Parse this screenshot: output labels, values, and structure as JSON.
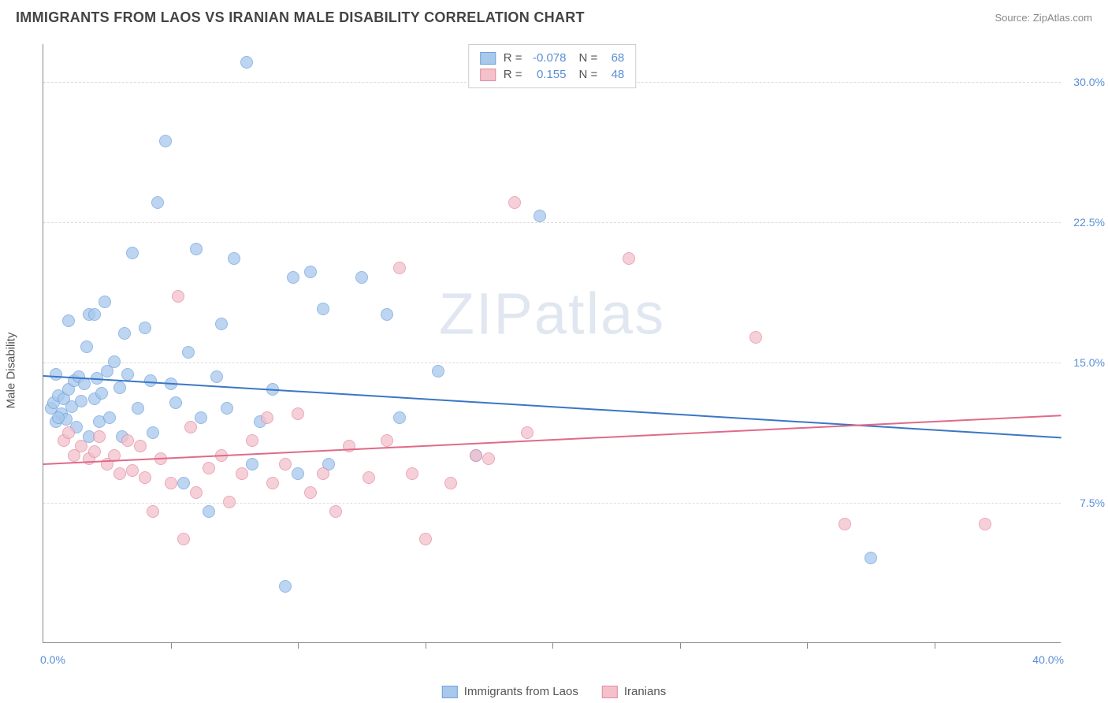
{
  "title": "IMMIGRANTS FROM LAOS VS IRANIAN MALE DISABILITY CORRELATION CHART",
  "source_label": "Source: ",
  "source_value": "ZipAtlas.com",
  "y_axis_label": "Male Disability",
  "watermark_a": "ZIP",
  "watermark_b": "atlas",
  "chart": {
    "type": "scatter",
    "xlim": [
      0,
      40
    ],
    "ylim": [
      0,
      32
    ],
    "y_ticks": [
      7.5,
      15.0,
      22.5,
      30.0
    ],
    "y_tick_labels": [
      "7.5%",
      "15.0%",
      "22.5%",
      "30.0%"
    ],
    "x_minor_ticks": [
      5,
      10,
      15,
      20,
      25,
      30,
      35
    ],
    "x_tick_labels": [
      {
        "pos": 0,
        "label": "0.0%"
      },
      {
        "pos": 40,
        "label": "40.0%"
      }
    ],
    "background_color": "#ffffff",
    "grid_color": "#dddddd",
    "axis_color": "#888888",
    "tick_label_color": "#5a8fd6",
    "series": [
      {
        "name": "Immigrants from Laos",
        "fill": "#a8c8ec",
        "stroke": "#6fa3dd",
        "line_color": "#3a76c6",
        "R": "-0.078",
        "N": "68",
        "regression": {
          "x1": 0,
          "y1": 14.3,
          "x2": 40,
          "y2": 11.0
        },
        "points": [
          [
            0.3,
            12.5
          ],
          [
            0.4,
            12.8
          ],
          [
            0.5,
            11.8
          ],
          [
            0.6,
            13.2
          ],
          [
            0.7,
            12.2
          ],
          [
            0.8,
            13.0
          ],
          [
            0.9,
            11.9
          ],
          [
            1.0,
            13.5
          ],
          [
            0.6,
            12.0
          ],
          [
            1.1,
            12.6
          ],
          [
            1.2,
            14.0
          ],
          [
            1.3,
            11.5
          ],
          [
            1.4,
            14.2
          ],
          [
            1.5,
            12.9
          ],
          [
            1.6,
            13.8
          ],
          [
            1.8,
            17.5
          ],
          [
            2.0,
            13.0
          ],
          [
            2.1,
            14.1
          ],
          [
            2.2,
            11.8
          ],
          [
            2.3,
            13.3
          ],
          [
            2.5,
            14.5
          ],
          [
            2.6,
            12.0
          ],
          [
            2.8,
            15.0
          ],
          [
            3.0,
            13.6
          ],
          [
            3.1,
            11.0
          ],
          [
            3.3,
            14.3
          ],
          [
            3.5,
            20.8
          ],
          [
            3.7,
            12.5
          ],
          [
            4.0,
            16.8
          ],
          [
            4.2,
            14.0
          ],
          [
            4.5,
            23.5
          ],
          [
            4.8,
            26.8
          ],
          [
            5.0,
            13.8
          ],
          [
            5.2,
            12.8
          ],
          [
            5.5,
            8.5
          ],
          [
            5.7,
            15.5
          ],
          [
            6.0,
            21.0
          ],
          [
            6.2,
            12.0
          ],
          [
            6.5,
            7.0
          ],
          [
            6.8,
            14.2
          ],
          [
            7.0,
            17.0
          ],
          [
            7.2,
            12.5
          ],
          [
            7.5,
            20.5
          ],
          [
            8.0,
            31.0
          ],
          [
            8.2,
            9.5
          ],
          [
            8.5,
            11.8
          ],
          [
            9.0,
            13.5
          ],
          [
            9.5,
            3.0
          ],
          [
            9.8,
            19.5
          ],
          [
            10.0,
            9.0
          ],
          [
            10.5,
            19.8
          ],
          [
            11.0,
            17.8
          ],
          [
            11.2,
            9.5
          ],
          [
            12.5,
            19.5
          ],
          [
            13.5,
            17.5
          ],
          [
            14.0,
            12.0
          ],
          [
            15.5,
            14.5
          ],
          [
            17.0,
            10.0
          ],
          [
            19.5,
            22.8
          ],
          [
            32.5,
            4.5
          ],
          [
            2.0,
            17.5
          ],
          [
            1.0,
            17.2
          ],
          [
            0.5,
            14.3
          ],
          [
            1.8,
            11.0
          ],
          [
            3.2,
            16.5
          ],
          [
            4.3,
            11.2
          ],
          [
            2.4,
            18.2
          ],
          [
            1.7,
            15.8
          ]
        ]
      },
      {
        "name": "Iranians",
        "fill": "#f4c1cb",
        "stroke": "#e38ba0",
        "line_color": "#e06a88",
        "R": "0.155",
        "N": "48",
        "regression": {
          "x1": 0,
          "y1": 9.6,
          "x2": 40,
          "y2": 12.2
        },
        "points": [
          [
            0.8,
            10.8
          ],
          [
            1.0,
            11.2
          ],
          [
            1.2,
            10.0
          ],
          [
            1.5,
            10.5
          ],
          [
            1.8,
            9.8
          ],
          [
            2.0,
            10.2
          ],
          [
            2.2,
            11.0
          ],
          [
            2.5,
            9.5
          ],
          [
            2.8,
            10.0
          ],
          [
            3.0,
            9.0
          ],
          [
            3.3,
            10.8
          ],
          [
            3.5,
            9.2
          ],
          [
            3.8,
            10.5
          ],
          [
            4.0,
            8.8
          ],
          [
            4.3,
            7.0
          ],
          [
            4.6,
            9.8
          ],
          [
            5.0,
            8.5
          ],
          [
            5.3,
            18.5
          ],
          [
            5.5,
            5.5
          ],
          [
            5.8,
            11.5
          ],
          [
            6.0,
            8.0
          ],
          [
            6.5,
            9.3
          ],
          [
            7.0,
            10.0
          ],
          [
            7.3,
            7.5
          ],
          [
            7.8,
            9.0
          ],
          [
            8.2,
            10.8
          ],
          [
            8.8,
            12.0
          ],
          [
            9.0,
            8.5
          ],
          [
            9.5,
            9.5
          ],
          [
            10.0,
            12.2
          ],
          [
            10.5,
            8.0
          ],
          [
            11.0,
            9.0
          ],
          [
            11.5,
            7.0
          ],
          [
            12.0,
            10.5
          ],
          [
            12.8,
            8.8
          ],
          [
            13.5,
            10.8
          ],
          [
            14.0,
            20.0
          ],
          [
            14.5,
            9.0
          ],
          [
            15.0,
            5.5
          ],
          [
            16.0,
            8.5
          ],
          [
            17.0,
            10.0
          ],
          [
            17.5,
            9.8
          ],
          [
            18.5,
            23.5
          ],
          [
            19.0,
            11.2
          ],
          [
            23.0,
            20.5
          ],
          [
            28.0,
            16.3
          ],
          [
            31.5,
            6.3
          ],
          [
            37.0,
            6.3
          ]
        ]
      }
    ]
  },
  "legend_top_stats": [
    "R =",
    "N ="
  ],
  "legend_bottom_labels": [
    "Immigrants from Laos",
    "Iranians"
  ]
}
